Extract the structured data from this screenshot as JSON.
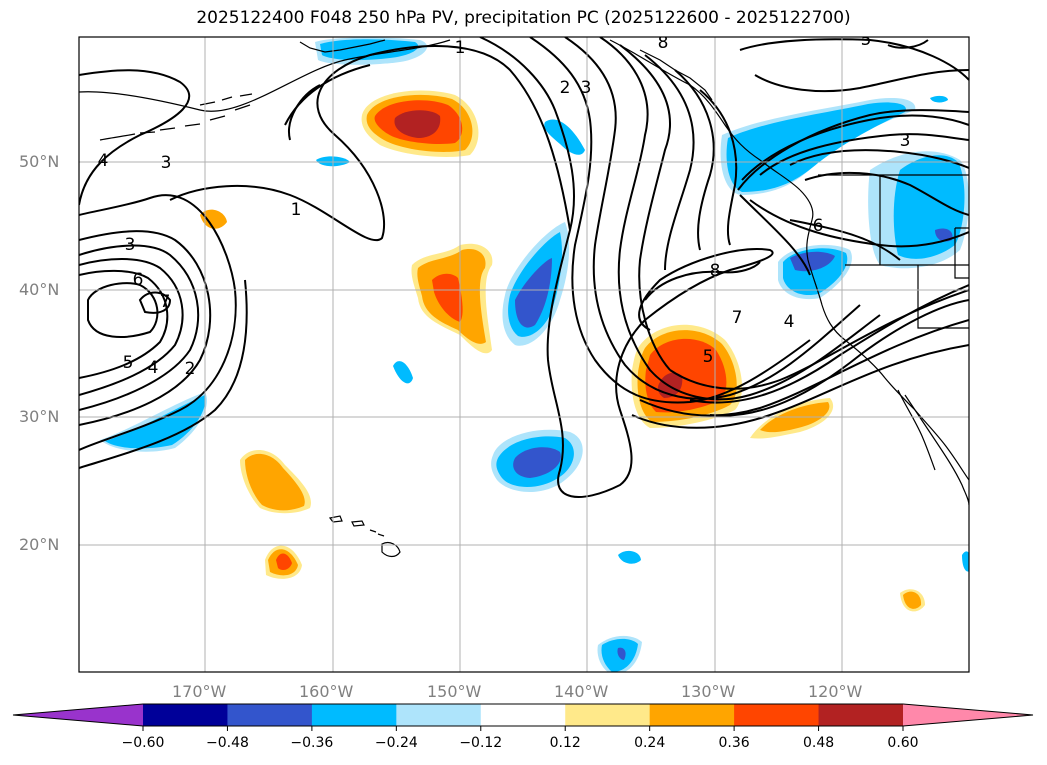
{
  "title": "2025122400 F048 250 hPa PV, precipitation PC (2025122600 - 2025122700)",
  "latitude_labels": [
    "50°N",
    "40°N",
    "30°N",
    "20°N"
  ],
  "longitude_labels": [
    "170°W",
    "160°W",
    "150°W",
    "140°W",
    "130°W",
    "120°W"
  ],
  "contour_labels": [
    "1",
    "2",
    "3",
    "4",
    "5",
    "6",
    "7",
    "8"
  ],
  "colorbar": {
    "ticks": [
      "−0.60",
      "−0.48",
      "−0.36",
      "−0.24",
      "−0.12",
      "0.12",
      "0.24",
      "0.36",
      "0.48",
      "0.60"
    ],
    "colors": [
      "#9933cc",
      "#000099",
      "#3355cc",
      "#00bbff",
      "#aee4fb",
      "#ffffff",
      "#ffe98a",
      "#ffa500",
      "#ff4500",
      "#b22222",
      "#ff88aa"
    ]
  }
}
